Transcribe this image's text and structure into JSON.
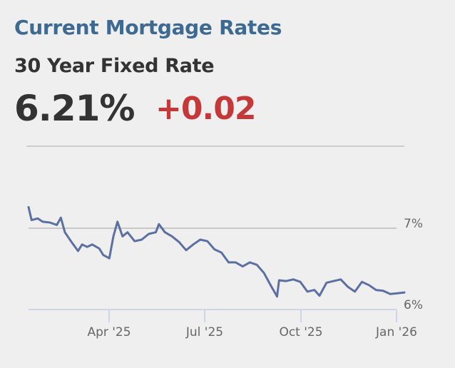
{
  "header": {
    "title": "Current Mortgage Rates",
    "subtitle": "30 Year Fixed Rate",
    "rate": "6.21%",
    "change": "+0.02"
  },
  "colors": {
    "title": "#3e6991",
    "text": "#333333",
    "change_positive": "#c5383a",
    "line": "#5b6fa0",
    "gridline": "#c8c8c8",
    "axis": "#cdd5e6",
    "background": "#efefef"
  },
  "chart_data": {
    "type": "line",
    "title": "30 Year Fixed Rate",
    "xlabel": "",
    "ylabel": "",
    "ylim": [
      6.0,
      7.0
    ],
    "yticks": [
      "6%",
      "7%"
    ],
    "xticks": [
      "Apr '25",
      "Jul '25",
      "Oct '25",
      "Jan '26"
    ],
    "grid": true,
    "series": [
      {
        "name": "30 Year Fixed Rate",
        "x": [
          "2025-01-13",
          "2025-01-16",
          "2025-01-22",
          "2025-01-27",
          "2025-02-03",
          "2025-02-10",
          "2025-02-14",
          "2025-02-18",
          "2025-02-24",
          "2025-03-03",
          "2025-03-07",
          "2025-03-12",
          "2025-03-17",
          "2025-03-24",
          "2025-03-28",
          "2025-04-03",
          "2025-04-07",
          "2025-04-11",
          "2025-04-16",
          "2025-04-21",
          "2025-04-28",
          "2025-05-05",
          "2025-05-12",
          "2025-05-19",
          "2025-05-22",
          "2025-05-28",
          "2025-06-04",
          "2025-06-11",
          "2025-06-18",
          "2025-06-25",
          "2025-07-02",
          "2025-07-09",
          "2025-07-16",
          "2025-07-23",
          "2025-07-30",
          "2025-08-06",
          "2025-08-13",
          "2025-08-20",
          "2025-08-27",
          "2025-09-03",
          "2025-09-10",
          "2025-09-16",
          "2025-09-18",
          "2025-09-25",
          "2025-10-02",
          "2025-10-09",
          "2025-10-16",
          "2025-10-23",
          "2025-10-28",
          "2025-11-04",
          "2025-11-11",
          "2025-11-18",
          "2025-11-25",
          "2025-12-02",
          "2025-12-09",
          "2025-12-16",
          "2025-12-23",
          "2025-12-30",
          "2026-01-06",
          "2026-01-13",
          "2026-01-20"
        ],
        "values": [
          7.26,
          7.1,
          7.12,
          7.08,
          7.07,
          7.04,
          7.13,
          6.95,
          6.84,
          6.72,
          6.8,
          6.77,
          6.8,
          6.75,
          6.67,
          6.63,
          6.9,
          7.08,
          6.9,
          6.95,
          6.84,
          6.86,
          6.93,
          6.95,
          7.05,
          6.95,
          6.9,
          6.83,
          6.73,
          6.8,
          6.86,
          6.84,
          6.74,
          6.7,
          6.58,
          6.58,
          6.53,
          6.58,
          6.55,
          6.45,
          6.29,
          6.16,
          6.36,
          6.35,
          6.37,
          6.34,
          6.22,
          6.24,
          6.17,
          6.33,
          6.35,
          6.37,
          6.28,
          6.22,
          6.34,
          6.3,
          6.24,
          6.23,
          6.19,
          6.2,
          6.21
        ]
      }
    ]
  },
  "axis": {
    "y_labels": [
      "7%",
      "6%"
    ],
    "x_labels": [
      "Apr '25",
      "Jul '25",
      "Oct '25",
      "Jan '26"
    ]
  }
}
